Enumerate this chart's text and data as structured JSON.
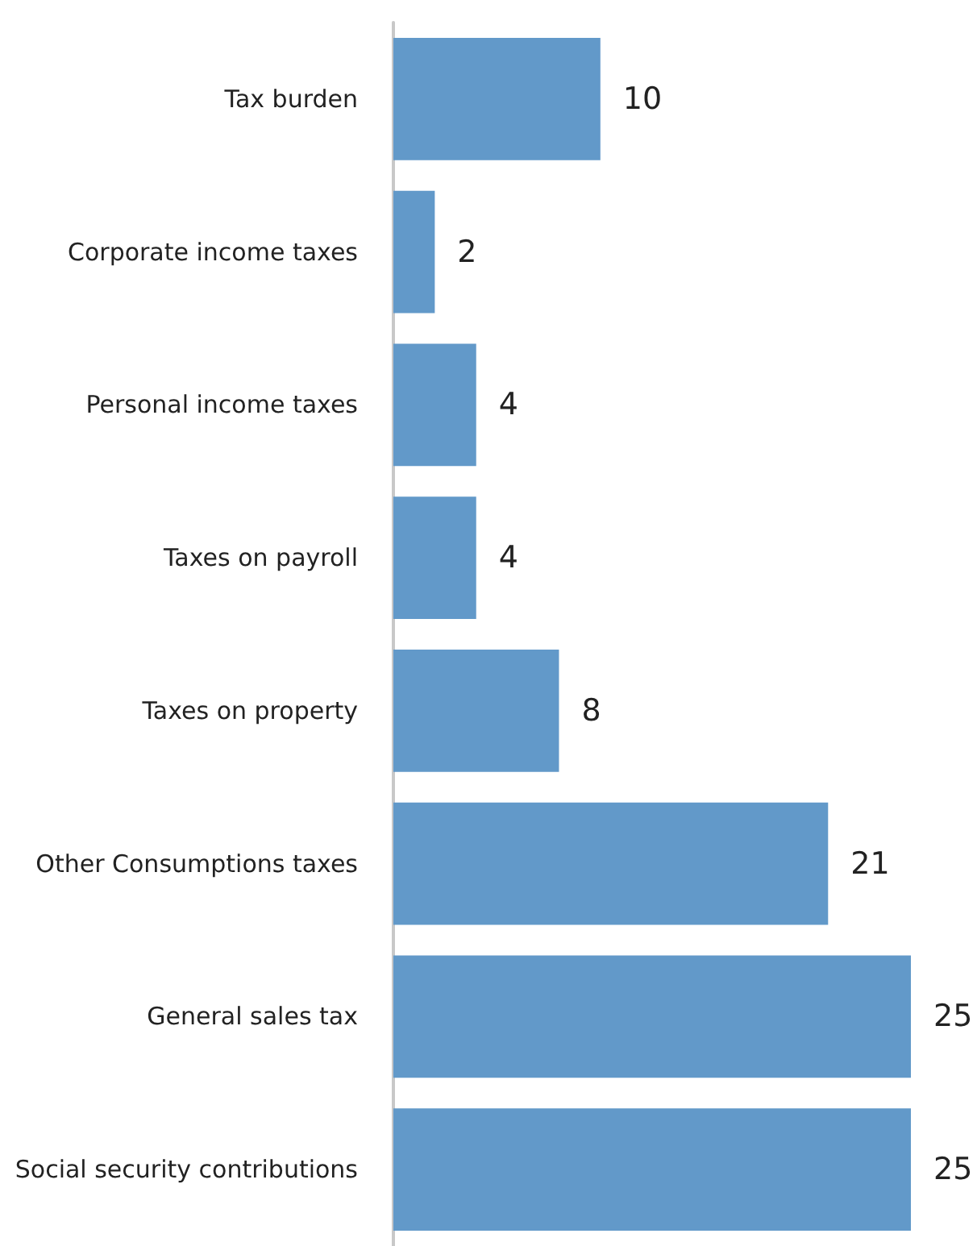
{
  "chart_data": {
    "type": "bar",
    "orientation": "horizontal",
    "categories": [
      "Tax burden",
      "Corporate income taxes",
      "Personal income taxes",
      "Taxes on payroll",
      "Taxes on property",
      "Other Consumptions taxes",
      "General sales tax",
      "Social security contributions"
    ],
    "values": [
      10,
      2,
      4,
      4,
      8,
      21,
      25,
      25
    ],
    "color": "#6299c9",
    "data_labels": true
  }
}
